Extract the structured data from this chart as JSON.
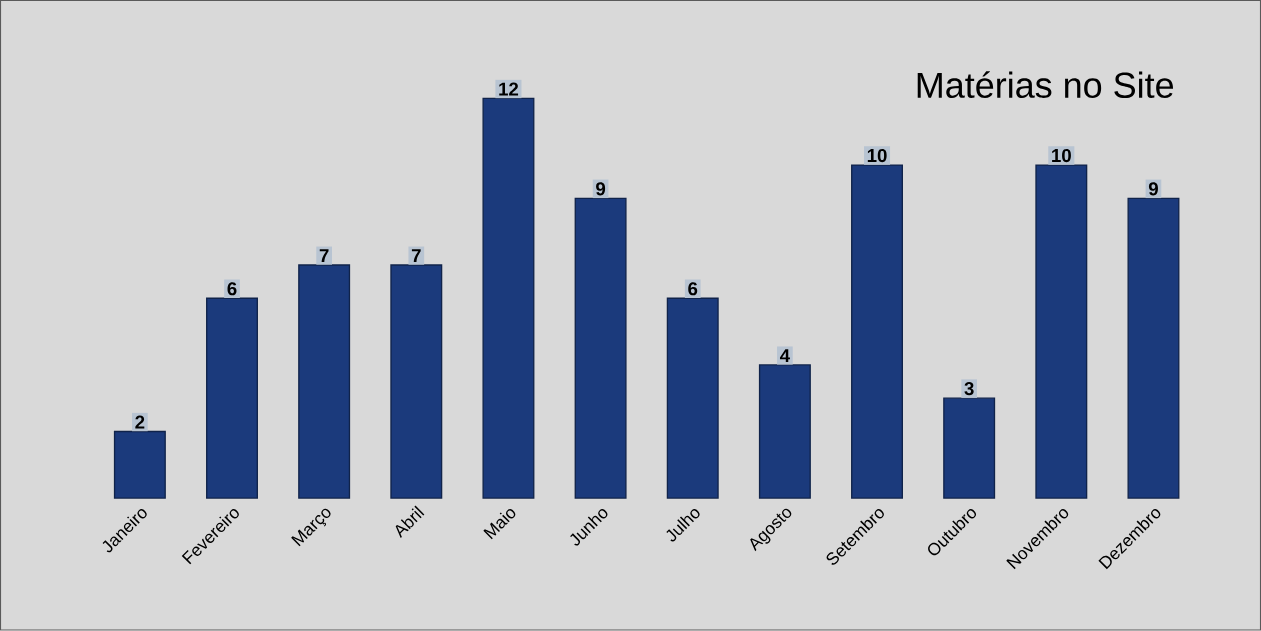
{
  "chart_data": {
    "type": "bar",
    "title": "Matérias no Site",
    "categories": [
      "Janeiro",
      "Fevereiro",
      "Março",
      "Abril",
      "Maio",
      "Junho",
      "Julho",
      "Agosto",
      "Setembro",
      "Outubro",
      "Novembro",
      "Dezembro"
    ],
    "values": [
      2,
      6,
      7,
      7,
      12,
      9,
      6,
      4,
      10,
      3,
      10,
      9
    ],
    "color": "#1b3a7c",
    "data_labels": true
  }
}
